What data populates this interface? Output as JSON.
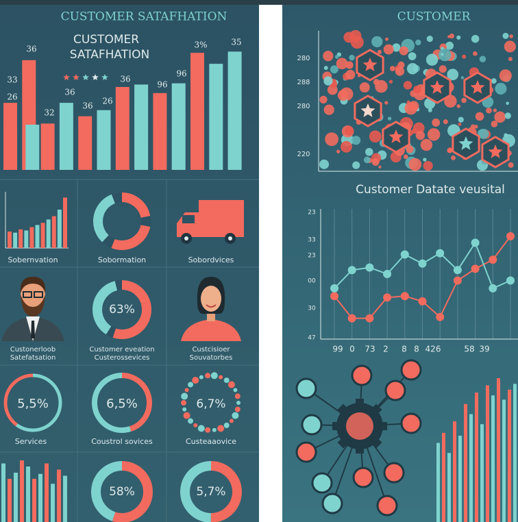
{
  "left": {
    "title": "CUSTOMER SATAFHATION",
    "subtitle_line1": "CUSTOMER",
    "subtitle_line2": "SATAFHATION",
    "top_bars": {
      "values": [
        55,
        90,
        38,
        55,
        44,
        49,
        68,
        70,
        63,
        71,
        96,
        87,
        97
      ],
      "colors": [
        "#f26b5e",
        "#f26b5e",
        "#f26b5e",
        "#7fd3cf",
        "#f26b5e",
        "#7fd3cf",
        "#f26b5e",
        "#7fd3cf",
        "#f26b5e",
        "#7fd3cf",
        "#f26b5e",
        "#7fd3cf",
        "#7fd3cf"
      ],
      "ylim": [
        0,
        100
      ],
      "labels": [
        "36",
        "33",
        "26",
        "32",
        "36",
        "36",
        "26",
        "36",
        "96",
        "96",
        "3%",
        "35"
      ]
    },
    "mini_bars": {
      "values": [
        30,
        28,
        34,
        32,
        38,
        42,
        46,
        52,
        58,
        70,
        92
      ],
      "ylim": [
        0,
        100
      ]
    },
    "cells": [
      {
        "label": "Sobernvation"
      },
      {
        "label": "Sobormation"
      },
      {
        "label": "Sobordvices"
      },
      {
        "label_line1": "Custonerloob",
        "label_line2": "Satefatsation"
      },
      {
        "center": "63%",
        "label_line1": "Customer eveation",
        "label_line2": "Custerossevices"
      },
      {
        "label_line1": "Custcisioer",
        "label_line2": "Souvatorbes"
      },
      {
        "center": "5,5%",
        "label": "Services"
      },
      {
        "center": "6,5%",
        "label": "Coustrol sovices"
      },
      {
        "center": "6,7%",
        "label": "Custeaaovice"
      },
      {
        "center": ""
      },
      {
        "center": "58%"
      },
      {
        "center": "5,7%"
      }
    ],
    "bottom_bars": {
      "values": [
        95,
        70,
        80,
        100,
        90,
        70,
        78,
        95,
        62,
        85,
        75
      ],
      "ylim": [
        0,
        100
      ]
    }
  },
  "right": {
    "title": "CUSTOMER",
    "scatter_yticks": [
      "280",
      "288",
      "280",
      "220"
    ],
    "heading": "Customer Datate veusital",
    "line_chart": {
      "ylim": [
        0,
        100
      ],
      "yticks": [
        "23",
        "33",
        "23",
        "00",
        "30",
        "47"
      ],
      "xticks": [
        "99",
        "0",
        "73",
        "2",
        "8",
        "8",
        "426",
        "58",
        "39"
      ],
      "series": [
        {
          "color": "#f26b5e",
          "values": [
            33,
            16,
            16,
            32,
            33,
            29,
            17,
            45,
            54,
            61,
            79
          ]
        },
        {
          "color": "#7fd3cf",
          "values": [
            39,
            53,
            55,
            50,
            65,
            58,
            66,
            53,
            74,
            39,
            45
          ]
        }
      ]
    },
    "bottom_bars": {
      "values": [
        55,
        62,
        48,
        70,
        60,
        82,
        75,
        90,
        68,
        95,
        88,
        100,
        85,
        92,
        96
      ],
      "ylim": [
        0,
        100
      ]
    }
  }
}
